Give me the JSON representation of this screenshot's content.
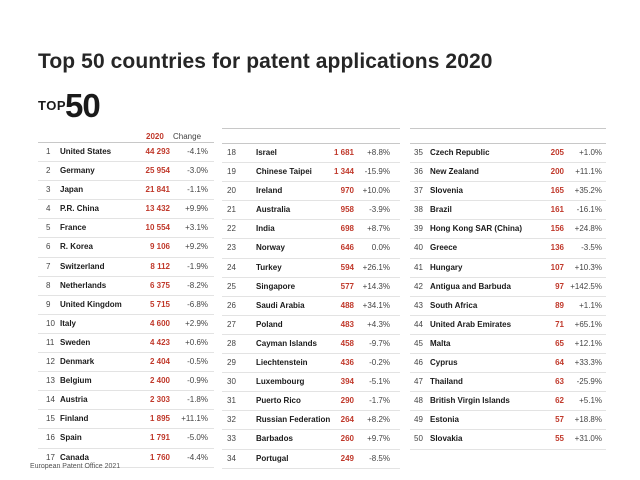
{
  "title": "Top 50 countries for patent applications 2020",
  "logo": {
    "top": "TOP",
    "num": "50"
  },
  "headers": {
    "year": "2020",
    "change": "Change"
  },
  "source": "European Patent Office 2021",
  "col1": [
    {
      "rank": "1",
      "name": "United States",
      "value": "44 293",
      "change": "-4.1%"
    },
    {
      "rank": "2",
      "name": "Germany",
      "value": "25 954",
      "change": "-3.0%"
    },
    {
      "rank": "3",
      "name": "Japan",
      "value": "21 841",
      "change": "-1.1%"
    },
    {
      "rank": "4",
      "name": "P.R. China",
      "value": "13 432",
      "change": "+9.9%"
    },
    {
      "rank": "5",
      "name": "France",
      "value": "10 554",
      "change": "+3.1%"
    },
    {
      "rank": "6",
      "name": "R. Korea",
      "value": "9 106",
      "change": "+9.2%"
    },
    {
      "rank": "7",
      "name": "Switzerland",
      "value": "8 112",
      "change": "-1.9%"
    },
    {
      "rank": "8",
      "name": "Netherlands",
      "value": "6 375",
      "change": "-8.2%"
    },
    {
      "rank": "9",
      "name": "United Kingdom",
      "value": "5 715",
      "change": "-6.8%"
    },
    {
      "rank": "10",
      "name": "Italy",
      "value": "4 600",
      "change": "+2.9%"
    },
    {
      "rank": "11",
      "name": "Sweden",
      "value": "4 423",
      "change": "+0.6%"
    },
    {
      "rank": "12",
      "name": "Denmark",
      "value": "2 404",
      "change": "-0.5%"
    },
    {
      "rank": "13",
      "name": "Belgium",
      "value": "2 400",
      "change": "-0.9%"
    },
    {
      "rank": "14",
      "name": "Austria",
      "value": "2 303",
      "change": "-1.8%"
    },
    {
      "rank": "15",
      "name": "Finland",
      "value": "1 895",
      "change": "+11.1%"
    },
    {
      "rank": "16",
      "name": "Spain",
      "value": "1 791",
      "change": "-5.0%"
    },
    {
      "rank": "17",
      "name": "Canada",
      "value": "1 760",
      "change": "-4.4%"
    }
  ],
  "col2": [
    {
      "rank": "18",
      "name": "Israel",
      "value": "1 681",
      "change": "+8.8%"
    },
    {
      "rank": "19",
      "name": "Chinese Taipei",
      "value": "1 344",
      "change": "-15.9%"
    },
    {
      "rank": "20",
      "name": "Ireland",
      "value": "970",
      "change": "+10.0%"
    },
    {
      "rank": "21",
      "name": "Australia",
      "value": "958",
      "change": "-3.9%"
    },
    {
      "rank": "22",
      "name": "India",
      "value": "698",
      "change": "+8.7%"
    },
    {
      "rank": "23",
      "name": "Norway",
      "value": "646",
      "change": "0.0%"
    },
    {
      "rank": "24",
      "name": "Turkey",
      "value": "594",
      "change": "+26.1%"
    },
    {
      "rank": "25",
      "name": "Singapore",
      "value": "577",
      "change": "+14.3%"
    },
    {
      "rank": "26",
      "name": "Saudi Arabia",
      "value": "488",
      "change": "+34.1%"
    },
    {
      "rank": "27",
      "name": "Poland",
      "value": "483",
      "change": "+4.3%"
    },
    {
      "rank": "28",
      "name": "Cayman Islands",
      "value": "458",
      "change": "-9.7%"
    },
    {
      "rank": "29",
      "name": "Liechtenstein",
      "value": "436",
      "change": "-0.2%"
    },
    {
      "rank": "30",
      "name": "Luxembourg",
      "value": "394",
      "change": "-5.1%"
    },
    {
      "rank": "31",
      "name": "Puerto Rico",
      "value": "290",
      "change": "-1.7%"
    },
    {
      "rank": "32",
      "name": "Russian Federation",
      "value": "264",
      "change": "+8.2%"
    },
    {
      "rank": "33",
      "name": "Barbados",
      "value": "260",
      "change": "+9.7%"
    },
    {
      "rank": "34",
      "name": "Portugal",
      "value": "249",
      "change": "-8.5%"
    }
  ],
  "col3": [
    {
      "rank": "35",
      "name": "Czech Republic",
      "value": "205",
      "change": "+1.0%"
    },
    {
      "rank": "36",
      "name": "New Zealand",
      "value": "200",
      "change": "+11.1%"
    },
    {
      "rank": "37",
      "name": "Slovenia",
      "value": "165",
      "change": "+35.2%"
    },
    {
      "rank": "38",
      "name": "Brazil",
      "value": "161",
      "change": "-16.1%"
    },
    {
      "rank": "39",
      "name": "Hong Kong SAR (China)",
      "value": "156",
      "change": "+24.8%"
    },
    {
      "rank": "40",
      "name": "Greece",
      "value": "136",
      "change": "-3.5%"
    },
    {
      "rank": "41",
      "name": "Hungary",
      "value": "107",
      "change": "+10.3%"
    },
    {
      "rank": "42",
      "name": "Antigua and Barbuda",
      "value": "97",
      "change": "+142.5%"
    },
    {
      "rank": "43",
      "name": "South Africa",
      "value": "89",
      "change": "+1.1%"
    },
    {
      "rank": "44",
      "name": "United Arab Emirates",
      "value": "71",
      "change": "+65.1%"
    },
    {
      "rank": "45",
      "name": "Malta",
      "value": "65",
      "change": "+12.1%"
    },
    {
      "rank": "46",
      "name": "Cyprus",
      "value": "64",
      "change": "+33.3%"
    },
    {
      "rank": "47",
      "name": "Thailand",
      "value": "63",
      "change": "-25.9%"
    },
    {
      "rank": "48",
      "name": "British Virgin Islands",
      "value": "62",
      "change": "+5.1%"
    },
    {
      "rank": "49",
      "name": "Estonia",
      "value": "57",
      "change": "+18.8%"
    },
    {
      "rank": "50",
      "name": "Slovakia",
      "value": "55",
      "change": "+31.0%"
    }
  ]
}
